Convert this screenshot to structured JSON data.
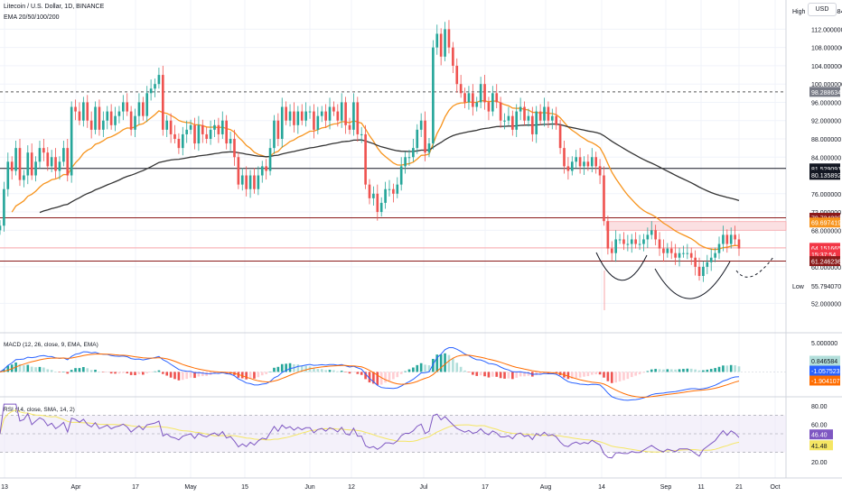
{
  "header": {
    "symbol_line": "Litecoin / U.S. Dollar, 1D, BINANCE",
    "ema_label": "EMA 20/50/100/200",
    "currency_button": "USD"
  },
  "colors": {
    "up": "#26a69a",
    "down": "#ef5350",
    "ema_short": "#f7941d",
    "ema_long": "#333333",
    "macd_line": "#2962ff",
    "signal_line": "#ff6d00",
    "rsi_line": "#7e57c2",
    "rsi_ma": "#f5e663",
    "resistance": "#8b1a1a",
    "level_gray": "#555555",
    "accent_red": "#f23645"
  },
  "chart_data": [
    {
      "type": "candlestick",
      "name": "price",
      "xlabel": "",
      "ylabel": "",
      "ylim": [
        50.5,
        117.8
      ],
      "x_tick_labels": [
        "13",
        "Apr",
        "17",
        "May",
        "15",
        "Jun",
        "12",
        "Jul",
        "17",
        "Aug",
        "14",
        "Sep",
        "11",
        "21",
        "Oct"
      ],
      "y_tick_labels": [
        "112.000000",
        "108.000000",
        "104.000000",
        "100.000000",
        "96.000000",
        "92.000000",
        "88.000000",
        "84.000000",
        "76.000000",
        "72.000000",
        "68.000000",
        "60.000000",
        "52.000000"
      ],
      "price_labels": [
        {
          "text": "High",
          "value": "116.050384",
          "bg": "#ffffff",
          "fg": "#131722"
        },
        {
          "text": "",
          "value": "98.288634",
          "bg": "#787b86",
          "fg": "#ffffff"
        },
        {
          "text": "",
          "value": "81.529091",
          "bg": "#131722",
          "fg": "#ffffff"
        },
        {
          "text": "",
          "value": "80.135892",
          "bg": "#131722",
          "fg": "#ffffff"
        },
        {
          "text": "",
          "value": "70.734223",
          "bg": "#8b1a1a",
          "fg": "#ffffff"
        },
        {
          "text": "",
          "value": "69.697419",
          "bg": "#f7941d",
          "fg": "#ffffff"
        },
        {
          "text": "",
          "value": "64.151665",
          "bg": "#f23645",
          "fg": "#ffffff"
        },
        {
          "text": "",
          "value": "15:37:54",
          "bg": "#f23645",
          "fg": "#ffffff"
        },
        {
          "text": "",
          "value": "61.246236",
          "bg": "#8b1a1a",
          "fg": "#ffffff"
        },
        {
          "text": "Low",
          "value": "55.794070",
          "bg": "#ffffff",
          "fg": "#131722"
        }
      ],
      "levels": [
        98.29,
        81.53,
        70.73,
        61.25
      ],
      "high": 116.05,
      "low": 55.79,
      "last_price": 64.15,
      "closes": [
        69,
        77,
        83,
        81,
        86,
        79,
        80,
        85,
        80,
        83,
        86,
        85,
        82,
        84,
        81,
        83,
        86,
        80,
        95,
        94,
        92,
        96,
        92,
        90,
        95,
        90,
        92,
        94,
        91,
        93,
        94,
        96,
        94,
        90,
        93,
        96,
        93,
        98,
        99,
        100,
        102,
        90,
        92,
        89,
        88,
        86,
        89,
        90,
        91,
        87,
        91,
        89,
        88,
        90,
        91,
        89,
        92,
        87,
        88,
        84,
        78,
        80,
        77,
        80,
        77,
        80,
        82,
        81,
        86,
        92,
        88,
        95,
        92,
        94,
        91,
        94,
        92,
        94,
        94,
        90,
        93,
        94,
        92,
        95,
        94,
        92,
        96,
        91,
        90,
        96,
        89,
        89,
        78,
        75,
        76,
        72,
        74,
        77,
        77,
        76,
        78,
        82,
        84,
        84,
        86,
        90,
        92,
        85,
        87,
        108,
        111,
        106,
        112,
        108,
        104,
        100,
        98,
        96,
        98,
        95,
        96,
        100,
        96,
        94,
        98,
        96,
        92,
        92,
        93,
        90,
        94,
        95,
        92,
        93,
        89,
        94,
        92,
        95,
        92,
        93,
        91,
        86,
        82,
        81,
        83,
        84,
        82,
        83,
        82,
        84,
        82,
        80,
        70,
        64,
        63,
        66,
        66,
        65,
        65,
        66,
        65,
        65,
        66,
        67,
        68,
        66,
        64,
        63,
        64,
        63,
        62,
        63,
        63,
        63,
        62,
        60,
        58,
        60,
        61,
        62,
        63,
        65,
        67,
        65,
        67,
        66,
        64
      ]
    },
    {
      "type": "histogram+line",
      "name": "macd",
      "title": "MACD (12, 26, close, 9, EMA, EMA)",
      "xlabel": "",
      "ylabel": "",
      "ylim": [
        -3.5,
        5.8
      ],
      "y_tick_labels": [
        "5.000000"
      ],
      "value_labels": [
        {
          "value": "0.846584",
          "bg": "#b2dfdb",
          "fg": "#131722"
        },
        {
          "value": "-1.057523",
          "bg": "#2962ff",
          "fg": "#ffffff"
        },
        {
          "value": "-1.904107",
          "bg": "#ff6d00",
          "fg": "#ffffff"
        }
      ],
      "last": {
        "macd": -1.06,
        "signal": -1.9,
        "histogram": 0.85
      }
    },
    {
      "type": "line",
      "name": "rsi",
      "title": "RSI (14, close, SMA, 14, 2)",
      "xlabel": "",
      "ylabel": "",
      "ylim": [
        15,
        85
      ],
      "y_tick_labels": [
        "80.00",
        "60.00",
        "40.00",
        "20.00"
      ],
      "band": [
        30,
        70
      ],
      "value_labels": [
        {
          "value": "46.40",
          "bg": "#7e57c2",
          "fg": "#ffffff"
        },
        {
          "value": "41.48",
          "bg": "#f5e663",
          "fg": "#131722"
        }
      ],
      "last": {
        "rsi": 46.4,
        "rsi_ma": 41.48
      }
    }
  ]
}
